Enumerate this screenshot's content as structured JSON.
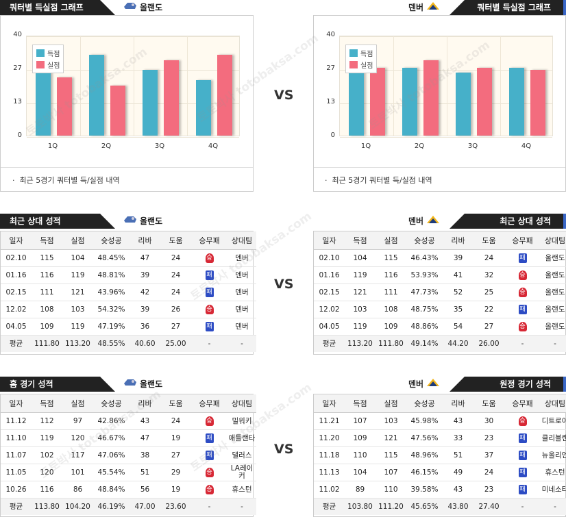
{
  "sections": {
    "graph_title": "쿼터별 득실점 그래프",
    "recent_title": "최근 상대 성적",
    "home_title": "홈 경기 성적",
    "away_title": "원정 경기 성적"
  },
  "teams": {
    "home": "올랜도",
    "away": "덴버"
  },
  "vs_label": "VS",
  "legend": {
    "score": "득점",
    "concede": "실점"
  },
  "chart_note": "최근 5경기 쿼터별 득/실점 내역",
  "colors": {
    "score": "#46b0c9",
    "concede": "#f36c7e",
    "win": "#d72835",
    "loss": "#2d4cc4",
    "accent": "#3a67c7"
  },
  "chart_data": [
    {
      "type": "bar",
      "team": "올랜도",
      "categories": [
        "1Q",
        "2Q",
        "3Q",
        "4Q"
      ],
      "series": [
        {
          "name": "득점",
          "values": [
            27,
            32,
            26,
            22
          ]
        },
        {
          "name": "실점",
          "values": [
            23,
            20,
            30,
            32
          ]
        }
      ],
      "yticks": [
        "0",
        "13",
        "27",
        "40"
      ],
      "ylim": [
        0,
        40
      ],
      "legend_position": "top-left"
    },
    {
      "type": "bar",
      "team": "덴버",
      "categories": [
        "1Q",
        "2Q",
        "3Q",
        "4Q"
      ],
      "series": [
        {
          "name": "득점",
          "values": [
            28,
            27,
            25,
            27
          ]
        },
        {
          "name": "실점",
          "values": [
            27,
            30,
            27,
            26
          ]
        }
      ],
      "yticks": [
        "0",
        "13",
        "27",
        "40"
      ],
      "ylim": [
        0,
        40
      ],
      "legend_position": "top-left"
    }
  ],
  "table_headers": [
    "일자",
    "득점",
    "실점",
    "슛성공",
    "리바",
    "도움",
    "승무패",
    "상대팀"
  ],
  "result_labels": {
    "win": "승",
    "loss": "패"
  },
  "tables": {
    "home_recent": {
      "rows": [
        [
          "02.10",
          "115",
          "104",
          "48.45%",
          "47",
          "24",
          "win",
          "덴버"
        ],
        [
          "01.16",
          "116",
          "119",
          "48.81%",
          "39",
          "24",
          "loss",
          "덴버"
        ],
        [
          "02.15",
          "111",
          "121",
          "43.96%",
          "42",
          "24",
          "loss",
          "덴버"
        ],
        [
          "12.02",
          "108",
          "103",
          "54.32%",
          "39",
          "26",
          "win",
          "덴버"
        ],
        [
          "04.05",
          "109",
          "119",
          "47.19%",
          "36",
          "27",
          "loss",
          "덴버"
        ]
      ],
      "avg": [
        "평균",
        "111.80",
        "113.20",
        "48.55%",
        "40.60",
        "25.00",
        "-",
        "-"
      ]
    },
    "away_recent": {
      "rows": [
        [
          "02.10",
          "104",
          "115",
          "46.43%",
          "39",
          "24",
          "loss",
          "올랜도"
        ],
        [
          "01.16",
          "119",
          "116",
          "53.93%",
          "41",
          "32",
          "win",
          "올랜도"
        ],
        [
          "02.15",
          "121",
          "111",
          "47.73%",
          "52",
          "25",
          "win",
          "올랜도"
        ],
        [
          "12.02",
          "103",
          "108",
          "48.75%",
          "35",
          "22",
          "loss",
          "올랜도"
        ],
        [
          "04.05",
          "119",
          "109",
          "48.86%",
          "54",
          "27",
          "win",
          "올랜도"
        ]
      ],
      "avg": [
        "평균",
        "113.20",
        "111.80",
        "49.14%",
        "44.20",
        "26.00",
        "-",
        "-"
      ]
    },
    "home_games": {
      "rows": [
        [
          "11.12",
          "112",
          "97",
          "42.86%",
          "43",
          "24",
          "win",
          "밀워키"
        ],
        [
          "11.10",
          "119",
          "120",
          "46.67%",
          "47",
          "19",
          "loss",
          "애틀랜타"
        ],
        [
          "11.07",
          "102",
          "117",
          "47.06%",
          "38",
          "27",
          "loss",
          "댈러스"
        ],
        [
          "11.05",
          "120",
          "101",
          "45.54%",
          "51",
          "29",
          "win",
          "LA레이커"
        ],
        [
          "10.26",
          "116",
          "86",
          "48.84%",
          "56",
          "19",
          "win",
          "휴스턴"
        ]
      ],
      "avg": [
        "평균",
        "113.80",
        "104.20",
        "46.19%",
        "47.00",
        "23.60",
        "-",
        "-"
      ]
    },
    "away_games": {
      "rows": [
        [
          "11.21",
          "107",
          "103",
          "45.98%",
          "43",
          "30",
          "win",
          "디트로이"
        ],
        [
          "11.20",
          "109",
          "121",
          "47.56%",
          "33",
          "23",
          "loss",
          "클리블랜"
        ],
        [
          "11.18",
          "110",
          "115",
          "48.96%",
          "51",
          "37",
          "loss",
          "뉴올리언"
        ],
        [
          "11.13",
          "104",
          "107",
          "46.15%",
          "49",
          "24",
          "loss",
          "휴스턴"
        ],
        [
          "11.02",
          "89",
          "110",
          "39.58%",
          "43",
          "23",
          "loss",
          "미네소타"
        ]
      ],
      "avg": [
        "평균",
        "103.80",
        "111.20",
        "45.65%",
        "43.80",
        "27.40",
        "-",
        "-"
      ]
    }
  }
}
